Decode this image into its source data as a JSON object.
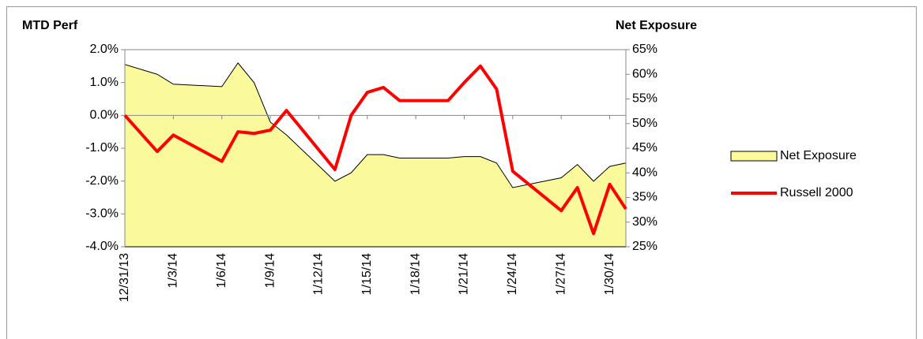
{
  "chart_data": {
    "type": "combo",
    "y_title": "MTD Perf",
    "y2_title": "Net Exposure",
    "x": [
      "12/31/13",
      "1/2/14",
      "1/3/14",
      "1/6/14",
      "1/7/14",
      "1/8/14",
      "1/9/14",
      "1/10/14",
      "1/13/14",
      "1/14/14",
      "1/15/14",
      "1/16/14",
      "1/17/14",
      "1/20/14",
      "1/21/14",
      "1/22/14",
      "1/23/14",
      "1/24/14",
      "1/27/14",
      "1/28/14",
      "1/29/14",
      "1/30/14",
      "1/31/14"
    ],
    "xlim": [
      "12/31/13",
      "1/31/14"
    ],
    "xticks": [
      "12/31/13",
      "1/3/14",
      "1/6/14",
      "1/9/14",
      "1/12/14",
      "1/15/14",
      "1/18/14",
      "1/21/14",
      "1/24/14",
      "1/27/14",
      "1/30/14"
    ],
    "ylim": [
      -4,
      2
    ],
    "yticks": [
      {
        "value": 2,
        "label": "2.0%"
      },
      {
        "value": 1,
        "label": "1.0%"
      },
      {
        "value": 0,
        "label": "0.0%"
      },
      {
        "value": -1,
        "label": "-1.0%"
      },
      {
        "value": -2,
        "label": "-2.0%"
      },
      {
        "value": -3,
        "label": "-3.0%"
      },
      {
        "value": -4,
        "label": "-4.0%"
      }
    ],
    "y2lim": [
      25,
      65
    ],
    "y2ticks": [
      {
        "value": 65,
        "label": "65%"
      },
      {
        "value": 60,
        "label": "60%"
      },
      {
        "value": 55,
        "label": "55%"
      },
      {
        "value": 50,
        "label": "50%"
      },
      {
        "value": 45,
        "label": "45%"
      },
      {
        "value": 40,
        "label": "40%"
      },
      {
        "value": 35,
        "label": "35%"
      },
      {
        "value": 30,
        "label": "30%"
      },
      {
        "value": 25,
        "label": "25%"
      }
    ],
    "legend": "right",
    "series": [
      {
        "name": "Net Exposure",
        "type": "area",
        "axis": "y2",
        "color": "#fafa9c",
        "values": [
          62.0,
          60.0,
          58.0,
          57.5,
          62.3,
          58.3,
          50.3,
          47.7,
          38.3,
          40.0,
          43.7,
          43.7,
          43.0,
          43.0,
          43.3,
          43.3,
          42.0,
          37.0,
          39.0,
          41.7,
          38.3,
          41.3,
          42.0
        ]
      },
      {
        "name": "Russell 2000",
        "type": "line",
        "axis": "y",
        "color": "#ff0000",
        "values": [
          0.0,
          -1.1,
          -0.6,
          -1.4,
          -0.5,
          -0.55,
          -0.45,
          0.15,
          -1.65,
          0.0,
          0.7,
          0.85,
          0.45,
          0.45,
          1.0,
          1.5,
          0.8,
          -1.7,
          -2.9,
          -2.2,
          -3.6,
          -2.1,
          -2.85
        ]
      }
    ]
  }
}
